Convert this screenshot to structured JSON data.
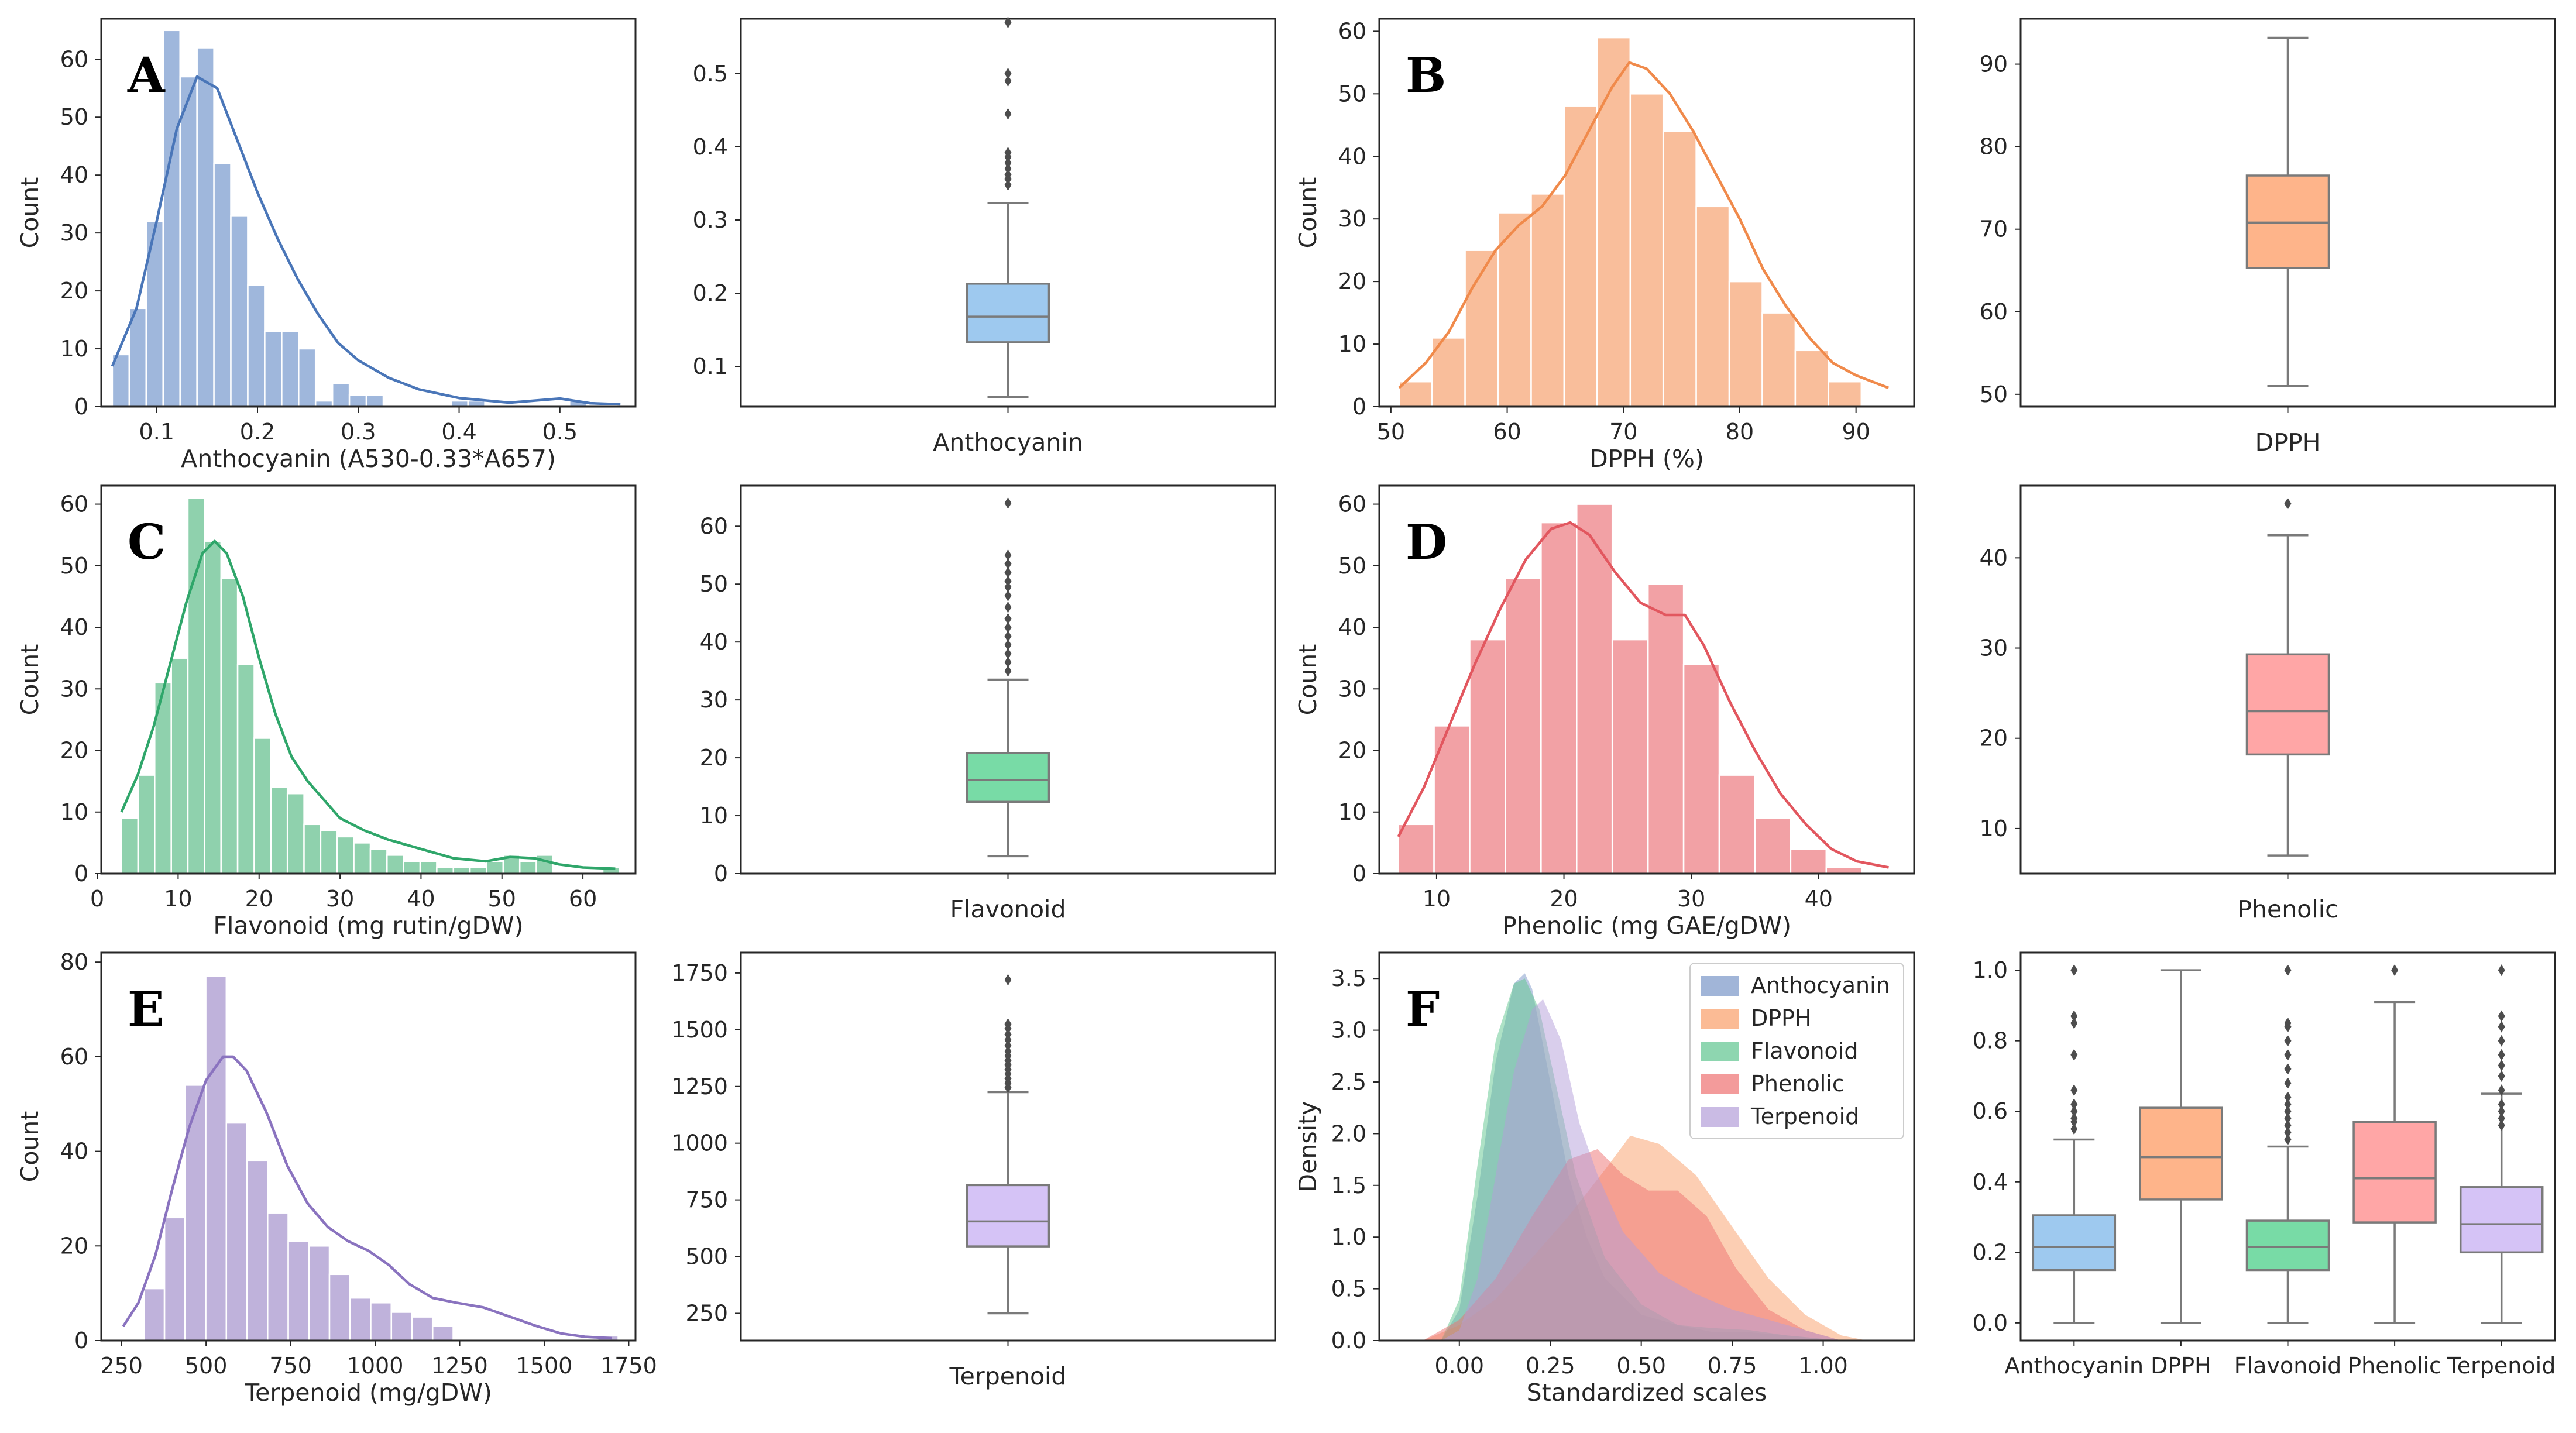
{
  "figure": {
    "description_free": true
  },
  "chart_data": [
    {
      "id": "hist_anthocyanin",
      "type": "bar",
      "panel_label": "A",
      "xlabel": "Anthocyanin (A530-0.33*A657)",
      "ylabel": "Count",
      "xlim": [
        0.045,
        0.575
      ],
      "ylim": [
        0,
        67
      ],
      "xticks": [
        0.1,
        0.2,
        0.3,
        0.4,
        0.5
      ],
      "xtick_labels": [
        "0.1",
        "0.2",
        "0.3",
        "0.4",
        "0.5"
      ],
      "yticks": [
        0,
        10,
        20,
        30,
        40,
        50,
        60
      ],
      "ytick_labels": [
        "0",
        "10",
        "20",
        "30",
        "40",
        "50",
        "60"
      ],
      "bin_start": 0.056,
      "bin_width": 0.0168,
      "counts": [
        9,
        17,
        32,
        65,
        57,
        62,
        42,
        33,
        21,
        13,
        13,
        10,
        1,
        4,
        2,
        2,
        0,
        0,
        0,
        0,
        1,
        1,
        0,
        0,
        0,
        0,
        0,
        1,
        0,
        0
      ],
      "kde_x": [
        0.056,
        0.08,
        0.1,
        0.12,
        0.14,
        0.16,
        0.18,
        0.2,
        0.22,
        0.24,
        0.26,
        0.28,
        0.3,
        0.33,
        0.36,
        0.4,
        0.45,
        0.5,
        0.53,
        0.56
      ],
      "kde_y": [
        7,
        17,
        32,
        48,
        57,
        55,
        46,
        37,
        29,
        22,
        16,
        11,
        8,
        5,
        3,
        1.5,
        0.7,
        1.4,
        0.6,
        0.4
      ],
      "fill": "#9fb7dc",
      "line": "#4a76b8"
    },
    {
      "id": "box_anthocyanin",
      "type": "box",
      "xlabel": "Anthocyanin",
      "ylim": [
        0.045,
        0.575
      ],
      "yticks": [
        0.1,
        0.2,
        0.3,
        0.4,
        0.5
      ],
      "ytick_labels": [
        "0.1",
        "0.2",
        "0.3",
        "0.4",
        "0.5"
      ],
      "whisker_low": 0.058,
      "q1": 0.133,
      "median": 0.168,
      "q3": 0.213,
      "whisker_high": 0.323,
      "outliers": [
        0.348,
        0.356,
        0.362,
        0.37,
        0.378,
        0.386,
        0.392,
        0.445,
        0.49,
        0.5,
        0.57
      ],
      "fill": "#9ec9ef"
    },
    {
      "id": "hist_dpph",
      "type": "bar",
      "panel_label": "B",
      "xlabel": "DPPH (%)",
      "ylabel": "Count",
      "xlim": [
        49,
        95
      ],
      "ylim": [
        0,
        62
      ],
      "xticks": [
        50,
        60,
        70,
        80,
        90
      ],
      "xtick_labels": [
        "50",
        "60",
        "70",
        "80",
        "90"
      ],
      "yticks": [
        0,
        10,
        20,
        30,
        40,
        50,
        60
      ],
      "ytick_labels": [
        "0",
        "10",
        "20",
        "30",
        "40",
        "50",
        "60"
      ],
      "bin_start": 50.7,
      "bin_width": 2.84,
      "counts": [
        4,
        11,
        25,
        31,
        34,
        48,
        59,
        50,
        44,
        32,
        20,
        15,
        9,
        4
      ],
      "kde_x": [
        50.7,
        53,
        55,
        57,
        59,
        61,
        63,
        65,
        67,
        69,
        70.5,
        72,
        74,
        76,
        78,
        80,
        82,
        84,
        86,
        88,
        90,
        92.8
      ],
      "kde_y": [
        3,
        7,
        12,
        19,
        25,
        29,
        32,
        37,
        44,
        51,
        55,
        54,
        50,
        44,
        37,
        30,
        22,
        16,
        11,
        7,
        5,
        3
      ],
      "fill": "#f9be9b",
      "line": "#f08a4b"
    },
    {
      "id": "box_dpph",
      "type": "box",
      "xlabel": "DPPH",
      "ylim": [
        48.5,
        95.5
      ],
      "yticks": [
        50,
        60,
        70,
        80,
        90
      ],
      "ytick_labels": [
        "50",
        "60",
        "70",
        "80",
        "90"
      ],
      "whisker_low": 51,
      "q1": 65.3,
      "median": 70.8,
      "q3": 76.5,
      "whisker_high": 93.2,
      "outliers": [],
      "fill": "#feb48a"
    },
    {
      "id": "hist_flavonoid",
      "type": "bar",
      "panel_label": "C",
      "xlabel": "Flavonoid (mg rutin/gDW)",
      "ylabel": "Count",
      "xlim": [
        0.5,
        66.5
      ],
      "ylim": [
        0,
        63
      ],
      "xticks": [
        0,
        10,
        20,
        30,
        40,
        50,
        60
      ],
      "xtick_labels": [
        "0",
        "10",
        "20",
        "30",
        "40",
        "50",
        "60"
      ],
      "yticks": [
        0,
        10,
        20,
        30,
        40,
        50,
        60
      ],
      "ytick_labels": [
        "0",
        "10",
        "20",
        "30",
        "40",
        "50",
        "60"
      ],
      "bin_start": 3.0,
      "bin_width": 2.05,
      "counts": [
        9,
        16,
        31,
        35,
        61,
        54,
        48,
        34,
        22,
        14,
        13,
        8,
        7,
        6,
        5,
        4,
        3,
        2,
        2,
        1,
        1,
        1,
        2,
        3,
        2,
        3,
        0,
        0,
        0,
        1
      ],
      "kde_x": [
        3,
        5,
        7,
        9,
        11,
        13,
        14.5,
        16,
        18,
        20,
        22,
        24,
        26,
        28,
        30,
        33,
        36,
        40,
        44,
        48,
        51,
        54,
        57,
        60,
        64
      ],
      "kde_y": [
        10,
        16,
        24,
        34,
        44,
        52,
        54,
        52,
        45,
        35,
        26,
        19,
        15,
        12,
        9,
        7,
        5.5,
        4,
        2.5,
        2,
        2.7,
        2.5,
        1.5,
        1,
        0.8
      ],
      "fill": "#8fd1ad",
      "line": "#2fa66a"
    },
    {
      "id": "box_flavonoid",
      "type": "box",
      "xlabel": "Flavonoid",
      "ylim": [
        0,
        67
      ],
      "yticks": [
        0,
        10,
        20,
        30,
        40,
        50,
        60
      ],
      "ytick_labels": [
        "0",
        "10",
        "20",
        "30",
        "40",
        "50",
        "60"
      ],
      "whisker_low": 3,
      "q1": 12.4,
      "median": 16.2,
      "q3": 20.8,
      "whisker_high": 33.5,
      "outliers": [
        35,
        36.5,
        38,
        39.5,
        41,
        42.5,
        44,
        46,
        48,
        49.5,
        50.5,
        52,
        53.5,
        55,
        64
      ],
      "fill": "#78dba6"
    },
    {
      "id": "hist_phenolic",
      "type": "bar",
      "panel_label": "D",
      "xlabel": "Phenolic (mg GAE/gDW)",
      "ylabel": "Count",
      "xlim": [
        5.5,
        47.5
      ],
      "ylim": [
        0,
        63
      ],
      "xticks": [
        10,
        20,
        30,
        40
      ],
      "xtick_labels": [
        "10",
        "20",
        "30",
        "40"
      ],
      "yticks": [
        0,
        10,
        20,
        30,
        40,
        50,
        60
      ],
      "ytick_labels": [
        "0",
        "10",
        "20",
        "30",
        "40",
        "50",
        "60"
      ],
      "bin_start": 7.0,
      "bin_width": 2.8,
      "counts": [
        8,
        24,
        38,
        48,
        57,
        60,
        38,
        47,
        34,
        16,
        9,
        4,
        1
      ],
      "kde_x": [
        7,
        9,
        11,
        13,
        15,
        17,
        19,
        20.5,
        22,
        24,
        26,
        28,
        29.5,
        31,
        33,
        35,
        37,
        39,
        41,
        43,
        45.5
      ],
      "kde_y": [
        6,
        14,
        24,
        34,
        43,
        51,
        56,
        57,
        55,
        49,
        44,
        42,
        42,
        37,
        28,
        20,
        13,
        8,
        4,
        2,
        1
      ],
      "fill": "#f2a1a5",
      "line": "#e2575f"
    },
    {
      "id": "box_phenolic",
      "type": "box",
      "xlabel": "Phenolic",
      "ylim": [
        5,
        48
      ],
      "yticks": [
        10,
        20,
        30,
        40
      ],
      "ytick_labels": [
        "10",
        "20",
        "30",
        "40"
      ],
      "whisker_low": 7,
      "q1": 18.2,
      "median": 23,
      "q3": 29.3,
      "whisker_high": 42.5,
      "outliers": [
        46
      ],
      "fill": "#ffa6a6"
    },
    {
      "id": "hist_terpenoid",
      "type": "bar",
      "panel_label": "E",
      "xlabel": "Terpenoid (mg/gDW)",
      "ylabel": "Count",
      "xlim": [
        190,
        1770
      ],
      "ylim": [
        0,
        82
      ],
      "xticks": [
        250,
        500,
        750,
        1000,
        1250,
        1500,
        1750
      ],
      "xtick_labels": [
        "250",
        "500",
        "750",
        "1000",
        "1250",
        "1500",
        "1750"
      ],
      "yticks": [
        0,
        20,
        40,
        60,
        80
      ],
      "ytick_labels": [
        "0",
        "20",
        "40",
        "60",
        "80"
      ],
      "bin_start": 255,
      "bin_width": 61,
      "counts": [
        0,
        11,
        26,
        54,
        77,
        46,
        38,
        27,
        21,
        20,
        14,
        9,
        8,
        6,
        5,
        3,
        0,
        0,
        0,
        0,
        0,
        0,
        0,
        1
      ],
      "kde_x": [
        255,
        300,
        350,
        400,
        450,
        500,
        550,
        580,
        620,
        680,
        740,
        800,
        860,
        920,
        980,
        1040,
        1100,
        1170,
        1240,
        1320,
        1400,
        1480,
        1550,
        1620,
        1700
      ],
      "kde_y": [
        3,
        8,
        18,
        32,
        45,
        55,
        60,
        60,
        57,
        48,
        37,
        29,
        24,
        21,
        19,
        16,
        12,
        9,
        8,
        7,
        5,
        3,
        1.5,
        0.8,
        0.5
      ],
      "fill": "#bfb2db",
      "line": "#8a73bf"
    },
    {
      "id": "box_terpenoid",
      "type": "box",
      "xlabel": "Terpenoid",
      "ylim": [
        130,
        1840
      ],
      "yticks": [
        250,
        500,
        750,
        1000,
        1250,
        1500,
        1750
      ],
      "ytick_labels": [
        "250",
        "500",
        "750",
        "1000",
        "1250",
        "1500",
        "1750"
      ],
      "whisker_low": 250,
      "q1": 545,
      "median": 655,
      "q3": 815,
      "whisker_high": 1225,
      "outliers": [
        1245,
        1265,
        1285,
        1305,
        1325,
        1345,
        1365,
        1385,
        1405,
        1430,
        1455,
        1480,
        1505,
        1525,
        1720
      ],
      "fill": "#d5c3f6"
    },
    {
      "id": "kde_standardized",
      "type": "area",
      "panel_label": "F",
      "xlabel": "Standardized scales",
      "ylabel": "Density",
      "xlim": [
        -0.22,
        1.25
      ],
      "ylim": [
        0,
        3.75
      ],
      "xticks": [
        0,
        0.25,
        0.5,
        0.75,
        1.0
      ],
      "xtick_labels": [
        "0.00",
        "0.25",
        "0.50",
        "0.75",
        "1.00"
      ],
      "yticks": [
        0,
        0.5,
        1.0,
        1.5,
        2.0,
        2.5,
        3.0,
        3.5
      ],
      "ytick_labels": [
        "0.0",
        "0.5",
        "1.0",
        "1.5",
        "2.0",
        "2.5",
        "3.0",
        "3.5"
      ],
      "legend_position": "top-right",
      "series": [
        {
          "name": "Anthocyanin",
          "color": "#7996c7",
          "x": [
            -0.05,
            0.0,
            0.05,
            0.1,
            0.15,
            0.18,
            0.2,
            0.25,
            0.3,
            0.35,
            0.4,
            0.5,
            0.6,
            0.7,
            0.8,
            0.9,
            1.05
          ],
          "y": [
            0.0,
            0.3,
            1.4,
            2.7,
            3.45,
            3.55,
            3.4,
            2.5,
            1.6,
            1.0,
            0.6,
            0.25,
            0.15,
            0.08,
            0.08,
            0.05,
            0.0
          ]
        },
        {
          "name": "DPPH",
          "color": "#fa9e68",
          "x": [
            -0.1,
            0.0,
            0.1,
            0.2,
            0.3,
            0.4,
            0.47,
            0.55,
            0.65,
            0.75,
            0.85,
            0.95,
            1.05,
            1.12
          ],
          "y": [
            0.0,
            0.15,
            0.4,
            0.8,
            1.2,
            1.65,
            1.98,
            1.9,
            1.6,
            1.1,
            0.6,
            0.25,
            0.05,
            0.0
          ]
        },
        {
          "name": "Flavonoid",
          "color": "#5ec58e",
          "x": [
            -0.05,
            0.0,
            0.05,
            0.1,
            0.15,
            0.18,
            0.22,
            0.27,
            0.32,
            0.4,
            0.5,
            0.6,
            0.7,
            0.8,
            0.9,
            1.05
          ],
          "y": [
            0.0,
            0.4,
            1.7,
            2.9,
            3.45,
            3.5,
            3.2,
            2.4,
            1.6,
            0.8,
            0.35,
            0.15,
            0.12,
            0.1,
            0.05,
            0.0
          ]
        },
        {
          "name": "Phenolic",
          "color": "#ee7070",
          "x": [
            -0.1,
            0.0,
            0.1,
            0.2,
            0.3,
            0.38,
            0.45,
            0.52,
            0.6,
            0.68,
            0.76,
            0.85,
            0.95,
            1.05
          ],
          "y": [
            0.0,
            0.2,
            0.6,
            1.2,
            1.75,
            1.85,
            1.6,
            1.45,
            1.45,
            1.2,
            0.7,
            0.3,
            0.1,
            0.0
          ]
        },
        {
          "name": "Terpenoid",
          "color": "#b49ed9",
          "x": [
            -0.05,
            0.0,
            0.05,
            0.1,
            0.15,
            0.2,
            0.23,
            0.28,
            0.33,
            0.38,
            0.45,
            0.55,
            0.65,
            0.75,
            0.85,
            0.95,
            1.05
          ],
          "y": [
            0.0,
            0.1,
            0.6,
            1.6,
            2.6,
            3.2,
            3.3,
            2.9,
            2.1,
            1.6,
            1.05,
            0.65,
            0.45,
            0.3,
            0.2,
            0.1,
            0.0
          ]
        }
      ]
    },
    {
      "id": "box_all_standardized",
      "type": "box",
      "ylim": [
        -0.05,
        1.05
      ],
      "yticks": [
        0.0,
        0.2,
        0.4,
        0.6,
        0.8,
        1.0
      ],
      "ytick_labels": [
        "0.0",
        "0.2",
        "0.4",
        "0.6",
        "0.8",
        "1.0"
      ],
      "categories": [
        "Anthocyanin",
        "DPPH",
        "Flavonoid",
        "Phenolic",
        "Terpenoid"
      ],
      "boxes": [
        {
          "name": "Anthocyanin",
          "fill": "#9ec9ef",
          "whisker_low": 0.0,
          "q1": 0.15,
          "median": 0.215,
          "q3": 0.305,
          "whisker_high": 0.52,
          "outliers": [
            0.55,
            0.57,
            0.58,
            0.6,
            0.62,
            0.66,
            0.76,
            0.85,
            0.87,
            1.0
          ]
        },
        {
          "name": "DPPH",
          "fill": "#feb48a",
          "whisker_low": 0.0,
          "q1": 0.35,
          "median": 0.47,
          "q3": 0.61,
          "whisker_high": 1.0,
          "outliers": []
        },
        {
          "name": "Flavonoid",
          "fill": "#78dba6",
          "whisker_low": 0.0,
          "q1": 0.15,
          "median": 0.215,
          "q3": 0.29,
          "whisker_high": 0.5,
          "outliers": [
            0.52,
            0.54,
            0.56,
            0.58,
            0.6,
            0.62,
            0.64,
            0.68,
            0.72,
            0.76,
            0.8,
            0.84,
            0.85,
            1.0
          ]
        },
        {
          "name": "Phenolic",
          "fill": "#ffa6a6",
          "whisker_low": 0.0,
          "q1": 0.285,
          "median": 0.41,
          "q3": 0.57,
          "whisker_high": 0.91,
          "outliers": [
            1.0
          ]
        },
        {
          "name": "Terpenoid",
          "fill": "#d5c3f6",
          "whisker_low": 0.0,
          "q1": 0.2,
          "median": 0.28,
          "q3": 0.385,
          "whisker_high": 0.65,
          "outliers": [
            0.56,
            0.58,
            0.6,
            0.62,
            0.66,
            0.7,
            0.73,
            0.76,
            0.8,
            0.84,
            0.87,
            1.0
          ]
        }
      ]
    }
  ]
}
